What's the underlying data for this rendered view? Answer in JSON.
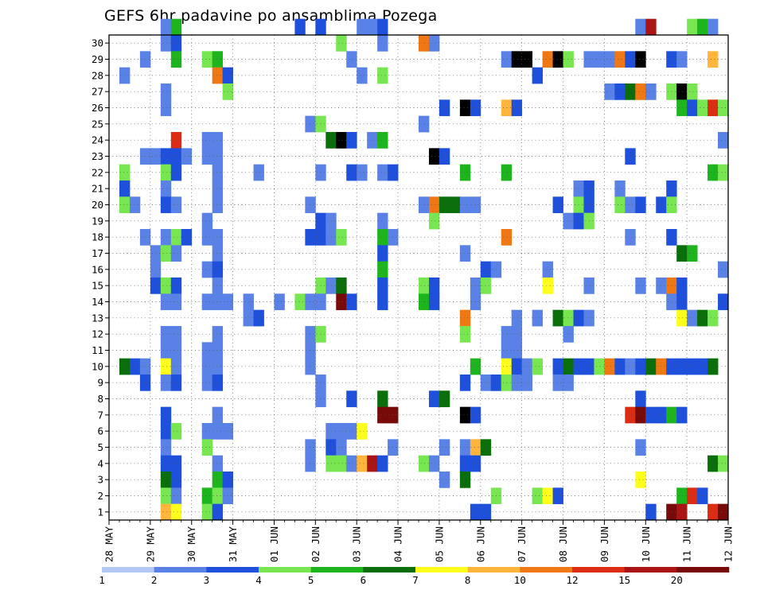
{
  "chart_data": {
    "type": "heatmap",
    "title": "GEFS 6hr padavine po ansamblima Pozega",
    "xlabel": "",
    "ylabel": "",
    "x_tick_labels": [
      "28 MAY",
      "29 MAY",
      "30 MAY",
      "31 MAY",
      "01 JUN",
      "02 JUN",
      "03 JUN",
      "04 JUN",
      "05 JUN",
      "06 JUN",
      "07 JUN",
      "08 JUN",
      "09 JUN",
      "10 JUN",
      "11 JUN",
      "12 JUN"
    ],
    "y_tick_labels": [
      "1",
      "2",
      "3",
      "4",
      "5",
      "6",
      "7",
      "8",
      "9",
      "10",
      "11",
      "12",
      "13",
      "14",
      "15",
      "16",
      "17",
      "18",
      "19",
      "20",
      "21",
      "22",
      "23",
      "24",
      "25",
      "26",
      "27",
      "28",
      "29",
      "30"
    ],
    "time_steps_per_day": 4,
    "n_time_steps": 60,
    "members": 30,
    "grid": true,
    "colorbar": {
      "position": "bottom",
      "tick_labels": [
        "1",
        "2",
        "3",
        "4",
        "5",
        "6",
        "7",
        "8",
        "10",
        "12",
        "15",
        "20"
      ],
      "colors": [
        "#b4c8f5",
        "#5a82e6",
        "#1e50dc",
        "#78e650",
        "#1eb41e",
        "#0a6e0a",
        "#ffff1e",
        "#ffb43c",
        "#f07814",
        "#dc2d14",
        "#aa1414",
        "#780a0a"
      ]
    },
    "cells": [
      [
        5,
        30,
        1
      ],
      [
        6,
        30,
        4
      ],
      [
        18,
        30,
        2
      ],
      [
        20,
        30,
        2
      ],
      [
        24,
        30,
        1
      ],
      [
        25,
        30,
        1
      ],
      [
        26,
        30,
        2
      ],
      [
        51,
        30,
        1
      ],
      [
        52,
        30,
        10
      ],
      [
        56,
        30,
        3
      ],
      [
        57,
        30,
        4
      ],
      [
        58,
        30,
        1
      ],
      [
        5,
        29,
        1
      ],
      [
        6,
        29,
        2
      ],
      [
        22,
        29,
        3
      ],
      [
        30,
        29,
        8
      ],
      [
        31,
        29,
        1
      ],
      [
        26,
        29,
        1
      ],
      [
        3,
        28,
        1
      ],
      [
        6,
        28,
        4
      ],
      [
        9,
        28,
        3
      ],
      [
        10,
        28,
        4
      ],
      [
        23,
        28,
        1
      ],
      [
        38,
        28,
        1
      ],
      [
        39,
        28,
        12
      ],
      [
        40,
        28,
        12
      ],
      [
        42,
        28,
        8
      ],
      [
        43,
        28,
        15
      ],
      [
        44,
        28,
        3
      ],
      [
        46,
        28,
        1
      ],
      [
        47,
        28,
        1
      ],
      [
        48,
        28,
        1
      ],
      [
        49,
        28,
        8
      ],
      [
        50,
        28,
        2
      ],
      [
        51,
        28,
        12
      ],
      [
        54,
        28,
        2
      ],
      [
        55,
        28,
        1
      ],
      [
        58,
        28,
        7
      ],
      [
        1,
        27,
        1
      ],
      [
        10,
        27,
        8
      ],
      [
        11,
        27,
        2
      ],
      [
        24,
        27,
        1
      ],
      [
        26,
        27,
        3
      ],
      [
        41,
        27,
        2
      ],
      [
        5,
        26,
        1
      ],
      [
        11,
        26,
        3
      ],
      [
        48,
        26,
        1
      ],
      [
        49,
        26,
        2
      ],
      [
        50,
        26,
        5
      ],
      [
        51,
        26,
        8
      ],
      [
        52,
        26,
        1
      ],
      [
        54,
        26,
        3
      ],
      [
        55,
        26,
        15
      ],
      [
        56,
        26,
        3
      ],
      [
        5,
        25,
        1
      ],
      [
        32,
        25,
        2
      ],
      [
        34,
        25,
        15
      ],
      [
        35,
        25,
        2
      ],
      [
        38,
        25,
        7
      ],
      [
        39,
        25,
        2
      ],
      [
        55,
        25,
        4
      ],
      [
        56,
        25,
        2
      ],
      [
        57,
        25,
        3
      ],
      [
        58,
        25,
        9
      ],
      [
        59,
        25,
        3
      ],
      [
        19,
        24,
        1
      ],
      [
        20,
        24,
        3
      ],
      [
        30,
        24,
        1
      ],
      [
        6,
        23,
        9
      ],
      [
        9,
        23,
        1
      ],
      [
        10,
        23,
        1
      ],
      [
        21,
        23,
        5
      ],
      [
        22,
        23,
        12
      ],
      [
        23,
        23,
        2
      ],
      [
        25,
        23,
        1
      ],
      [
        26,
        23,
        4
      ],
      [
        59,
        23,
        1
      ],
      [
        3,
        22,
        1
      ],
      [
        4,
        22,
        1
      ],
      [
        5,
        22,
        2
      ],
      [
        6,
        22,
        2
      ],
      [
        7,
        22,
        1
      ],
      [
        9,
        22,
        1
      ],
      [
        10,
        22,
        1
      ],
      [
        31,
        22,
        15
      ],
      [
        32,
        22,
        2
      ],
      [
        50,
        22,
        2
      ],
      [
        1,
        21,
        3
      ],
      [
        5,
        21,
        3
      ],
      [
        6,
        21,
        2
      ],
      [
        10,
        21,
        1
      ],
      [
        14,
        21,
        1
      ],
      [
        20,
        21,
        1
      ],
      [
        23,
        21,
        2
      ],
      [
        24,
        21,
        1
      ],
      [
        26,
        21,
        1
      ],
      [
        27,
        21,
        2
      ],
      [
        34,
        21,
        4
      ],
      [
        38,
        21,
        4
      ],
      [
        58,
        21,
        4
      ],
      [
        59,
        21,
        3
      ],
      [
        1,
        20,
        2
      ],
      [
        5,
        20,
        1
      ],
      [
        10,
        20,
        1
      ],
      [
        45,
        20,
        1
      ],
      [
        46,
        20,
        2
      ],
      [
        49,
        20,
        1
      ],
      [
        54,
        20,
        2
      ],
      [
        1,
        19,
        3
      ],
      [
        2,
        19,
        1
      ],
      [
        5,
        19,
        2
      ],
      [
        6,
        19,
        1
      ],
      [
        10,
        19,
        1
      ],
      [
        19,
        19,
        1
      ],
      [
        30,
        19,
        1
      ],
      [
        31,
        19,
        8
      ],
      [
        32,
        19,
        5
      ],
      [
        33,
        19,
        5
      ],
      [
        34,
        19,
        1
      ],
      [
        35,
        19,
        1
      ],
      [
        43,
        19,
        2
      ],
      [
        45,
        19,
        3
      ],
      [
        46,
        19,
        2
      ],
      [
        49,
        19,
        3
      ],
      [
        50,
        19,
        1
      ],
      [
        51,
        19,
        2
      ],
      [
        53,
        19,
        2
      ],
      [
        54,
        19,
        3
      ],
      [
        9,
        18,
        1
      ],
      [
        20,
        18,
        2
      ],
      [
        21,
        18,
        1
      ],
      [
        26,
        18,
        1
      ],
      [
        31,
        18,
        3
      ],
      [
        44,
        18,
        1
      ],
      [
        45,
        18,
        2
      ],
      [
        46,
        18,
        3
      ],
      [
        3,
        17,
        1
      ],
      [
        5,
        17,
        1
      ],
      [
        6,
        17,
        3
      ],
      [
        7,
        17,
        2
      ],
      [
        9,
        17,
        1
      ],
      [
        10,
        17,
        1
      ],
      [
        19,
        17,
        2
      ],
      [
        20,
        17,
        2
      ],
      [
        21,
        17,
        1
      ],
      [
        22,
        17,
        3
      ],
      [
        26,
        17,
        4
      ],
      [
        27,
        17,
        1
      ],
      [
        38,
        17,
        8
      ],
      [
        50,
        17,
        1
      ],
      [
        54,
        17,
        2
      ],
      [
        4,
        16,
        1
      ],
      [
        5,
        16,
        3
      ],
      [
        6,
        16,
        1
      ],
      [
        10,
        16,
        1
      ],
      [
        26,
        16,
        2
      ],
      [
        34,
        16,
        1
      ],
      [
        55,
        16,
        5
      ],
      [
        56,
        16,
        4
      ],
      [
        4,
        15,
        1
      ],
      [
        9,
        15,
        1
      ],
      [
        10,
        15,
        2
      ],
      [
        26,
        15,
        4
      ],
      [
        36,
        15,
        2
      ],
      [
        37,
        15,
        1
      ],
      [
        42,
        15,
        1
      ],
      [
        59,
        15,
        1
      ],
      [
        4,
        14,
        2
      ],
      [
        5,
        14,
        3
      ],
      [
        6,
        14,
        2
      ],
      [
        10,
        14,
        1
      ],
      [
        20,
        14,
        3
      ],
      [
        21,
        14,
        1
      ],
      [
        22,
        14,
        5
      ],
      [
        26,
        14,
        2
      ],
      [
        30,
        14,
        3
      ],
      [
        31,
        14,
        2
      ],
      [
        35,
        14,
        1
      ],
      [
        36,
        14,
        3
      ],
      [
        42,
        14,
        6
      ],
      [
        46,
        14,
        1
      ],
      [
        51,
        14,
        1
      ],
      [
        53,
        14,
        1
      ],
      [
        54,
        14,
        8
      ],
      [
        55,
        14,
        2
      ],
      [
        5,
        13,
        1
      ],
      [
        6,
        13,
        1
      ],
      [
        9,
        13,
        1
      ],
      [
        10,
        13,
        1
      ],
      [
        11,
        13,
        1
      ],
      [
        13,
        13,
        1
      ],
      [
        16,
        13,
        1
      ],
      [
        18,
        13,
        3
      ],
      [
        19,
        13,
        1
      ],
      [
        20,
        13,
        1
      ],
      [
        22,
        13,
        11
      ],
      [
        23,
        13,
        2
      ],
      [
        26,
        13,
        2
      ],
      [
        30,
        13,
        4
      ],
      [
        31,
        13,
        2
      ],
      [
        35,
        13,
        1
      ],
      [
        54,
        13,
        1
      ],
      [
        55,
        13,
        2
      ],
      [
        59,
        13,
        2
      ],
      [
        13,
        12,
        1
      ],
      [
        14,
        12,
        2
      ],
      [
        34,
        12,
        8
      ],
      [
        39,
        12,
        1
      ],
      [
        41,
        12,
        1
      ],
      [
        43,
        12,
        5
      ],
      [
        44,
        12,
        3
      ],
      [
        45,
        12,
        2
      ],
      [
        46,
        12,
        1
      ],
      [
        55,
        12,
        6
      ],
      [
        56,
        12,
        1
      ],
      [
        57,
        12,
        5
      ],
      [
        58,
        12,
        3
      ],
      [
        5,
        11,
        1
      ],
      [
        6,
        11,
        1
      ],
      [
        10,
        11,
        1
      ],
      [
        19,
        11,
        1
      ],
      [
        20,
        11,
        3
      ],
      [
        34,
        11,
        3
      ],
      [
        38,
        11,
        1
      ],
      [
        39,
        11,
        1
      ],
      [
        44,
        11,
        1
      ],
      [
        5,
        10,
        1
      ],
      [
        6,
        10,
        1
      ],
      [
        9,
        10,
        1
      ],
      [
        10,
        10,
        1
      ],
      [
        19,
        10,
        1
      ],
      [
        38,
        10,
        1
      ],
      [
        39,
        10,
        1
      ],
      [
        1,
        9,
        5
      ],
      [
        2,
        9,
        2
      ],
      [
        3,
        9,
        1
      ],
      [
        5,
        9,
        6
      ],
      [
        6,
        9,
        1
      ],
      [
        9,
        9,
        1
      ],
      [
        10,
        9,
        1
      ],
      [
        19,
        9,
        1
      ],
      [
        35,
        9,
        4
      ],
      [
        38,
        9,
        6
      ],
      [
        39,
        9,
        2
      ],
      [
        40,
        9,
        1
      ],
      [
        41,
        9,
        3
      ],
      [
        43,
        9,
        2
      ],
      [
        44,
        9,
        5
      ],
      [
        45,
        9,
        2
      ],
      [
        46,
        9,
        2
      ],
      [
        47,
        9,
        3
      ],
      [
        48,
        9,
        8
      ],
      [
        49,
        9,
        2
      ],
      [
        50,
        9,
        1
      ],
      [
        51,
        9,
        2
      ],
      [
        52,
        9,
        5
      ],
      [
        53,
        9,
        8
      ],
      [
        54,
        9,
        2
      ],
      [
        55,
        9,
        2
      ],
      [
        56,
        9,
        2
      ],
      [
        57,
        9,
        2
      ],
      [
        58,
        9,
        5
      ],
      [
        3,
        8,
        2
      ],
      [
        5,
        8,
        1
      ],
      [
        6,
        8,
        2
      ],
      [
        9,
        8,
        1
      ],
      [
        10,
        8,
        2
      ],
      [
        20,
        8,
        1
      ],
      [
        34,
        8,
        2
      ],
      [
        36,
        8,
        1
      ],
      [
        37,
        8,
        2
      ],
      [
        38,
        8,
        3
      ],
      [
        39,
        8,
        1
      ],
      [
        40,
        8,
        1
      ],
      [
        43,
        8,
        1
      ],
      [
        44,
        8,
        1
      ],
      [
        20,
        7,
        1
      ],
      [
        23,
        7,
        2
      ],
      [
        26,
        7,
        5
      ],
      [
        31,
        7,
        2
      ],
      [
        32,
        7,
        5
      ],
      [
        51,
        7,
        2
      ],
      [
        5,
        6,
        2
      ],
      [
        10,
        6,
        1
      ],
      [
        26,
        6,
        11
      ],
      [
        27,
        6,
        11
      ],
      [
        34,
        6,
        12
      ],
      [
        35,
        6,
        2
      ],
      [
        50,
        6,
        9
      ],
      [
        51,
        6,
        11
      ],
      [
        52,
        6,
        2
      ],
      [
        53,
        6,
        2
      ],
      [
        54,
        6,
        4
      ],
      [
        55,
        6,
        2
      ],
      [
        5,
        5,
        2
      ],
      [
        6,
        5,
        3
      ],
      [
        9,
        5,
        1
      ],
      [
        10,
        5,
        1
      ],
      [
        11,
        5,
        1
      ],
      [
        21,
        5,
        1
      ],
      [
        22,
        5,
        1
      ],
      [
        23,
        5,
        1
      ],
      [
        24,
        5,
        6
      ],
      [
        5,
        4,
        1
      ],
      [
        9,
        4,
        3
      ],
      [
        19,
        4,
        1
      ],
      [
        21,
        4,
        2
      ],
      [
        22,
        4,
        1
      ],
      [
        27,
        4,
        1
      ],
      [
        32,
        4,
        1
      ],
      [
        34,
        4,
        1
      ],
      [
        35,
        4,
        7
      ],
      [
        36,
        4,
        5
      ],
      [
        51,
        4,
        1
      ],
      [
        5,
        3,
        2
      ],
      [
        6,
        3,
        2
      ],
      [
        10,
        3,
        1
      ],
      [
        19,
        3,
        1
      ],
      [
        21,
        3,
        3
      ],
      [
        22,
        3,
        3
      ],
      [
        23,
        3,
        1
      ],
      [
        24,
        3,
        7
      ],
      [
        25,
        3,
        10
      ],
      [
        26,
        3,
        2
      ],
      [
        30,
        3,
        3
      ],
      [
        31,
        3,
        1
      ],
      [
        34,
        3,
        2
      ],
      [
        35,
        3,
        2
      ],
      [
        58,
        3,
        5
      ],
      [
        59,
        3,
        3
      ],
      [
        5,
        2,
        5
      ],
      [
        6,
        2,
        2
      ],
      [
        10,
        2,
        4
      ],
      [
        11,
        2,
        2
      ],
      [
        32,
        2,
        1
      ],
      [
        34,
        2,
        5
      ],
      [
        51,
        2,
        6
      ],
      [
        5,
        1,
        3
      ],
      [
        6,
        1,
        1
      ],
      [
        9,
        1,
        4
      ],
      [
        10,
        1,
        3
      ],
      [
        11,
        1,
        1
      ],
      [
        37,
        1,
        3
      ],
      [
        41,
        1,
        3
      ],
      [
        42,
        1,
        6
      ],
      [
        43,
        1,
        2
      ],
      [
        55,
        1,
        4
      ],
      [
        56,
        1,
        9
      ],
      [
        57,
        1,
        2
      ],
      [
        5,
        0,
        7
      ],
      [
        6,
        0,
        6
      ],
      [
        9,
        0,
        3
      ],
      [
        10,
        0,
        2
      ],
      [
        35,
        0,
        2
      ],
      [
        36,
        0,
        2
      ],
      [
        52,
        0,
        2
      ],
      [
        54,
        0,
        11
      ],
      [
        55,
        0,
        10
      ],
      [
        58,
        0,
        9
      ],
      [
        59,
        0,
        11
      ]
    ]
  }
}
